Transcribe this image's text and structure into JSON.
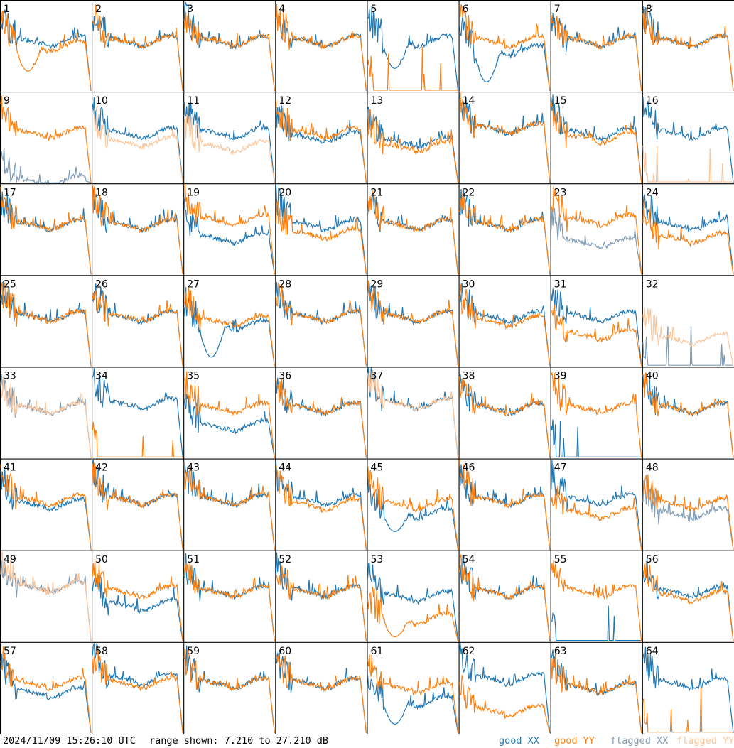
{
  "footer": {
    "timestamp": "2024/11/09 15:26:10 UTC",
    "range_text": "range shown: 7.210 to 27.210 dB"
  },
  "legend": [
    {
      "prefix": "good",
      "pol": "XX",
      "color": "#1f77b4"
    },
    {
      "prefix": "good",
      "pol": "YY",
      "color": "#ff7f0e"
    },
    {
      "prefix": "flagged",
      "pol": "XX",
      "color": "#7f9bb5"
    },
    {
      "prefix": "flagged",
      "pol": "YY",
      "color": "#fdc59a"
    }
  ],
  "chart_data": {
    "type": "line",
    "layout": "8x8 small multiples",
    "y_range_db": [
      7.21,
      27.21
    ],
    "series_names": [
      "good XX",
      "good YY",
      "flagged XX",
      "flagged YY"
    ],
    "panels": [
      {
        "id": "1",
        "xx": "good",
        "yy": "good",
        "xx_level": 0.55,
        "yy_level": 0.5,
        "yy_dip": 0.22,
        "note": "yy deep dip at start"
      },
      {
        "id": "2",
        "xx": "good",
        "yy": "good",
        "xx_level": 0.55,
        "yy_level": 0.55
      },
      {
        "id": "3",
        "xx": "good",
        "yy": "good",
        "xx_level": 0.55,
        "yy_level": 0.55
      },
      {
        "id": "4",
        "xx": "good",
        "yy": "good",
        "xx_level": 0.55,
        "yy_level": 0.55
      },
      {
        "id": "5",
        "xx": "good",
        "yy": "good",
        "xx_level": 0.55,
        "yy_level": 0.0,
        "xx_dip": 0.25,
        "note": "yy near bottom"
      },
      {
        "id": "6",
        "xx": "good",
        "yy": "good",
        "xx_level": 0.45,
        "yy_level": 0.55,
        "xx_dip": 0.1
      },
      {
        "id": "7",
        "xx": "good",
        "yy": "good",
        "xx_level": 0.55,
        "yy_level": 0.55
      },
      {
        "id": "8",
        "xx": "good",
        "yy": "good",
        "xx_level": 0.55,
        "yy_level": 0.55
      },
      {
        "id": "9",
        "xx": "flagged",
        "yy": "good",
        "xx_level": 0.02,
        "yy_level": 0.55,
        "note": "xx near bottom with spikes"
      },
      {
        "id": "10",
        "xx": "good",
        "yy": "flagged",
        "xx_level": 0.55,
        "yy_level": 0.45
      },
      {
        "id": "11",
        "xx": "good",
        "yy": "flagged",
        "xx_level": 0.55,
        "yy_level": 0.4
      },
      {
        "id": "12",
        "xx": "good",
        "yy": "good",
        "xx_level": 0.5,
        "yy_level": 0.55
      },
      {
        "id": "13",
        "xx": "good",
        "yy": "good",
        "xx_level": 0.45,
        "yy_level": 0.4
      },
      {
        "id": "14",
        "xx": "good",
        "yy": "good",
        "xx_level": 0.6,
        "yy_level": 0.6
      },
      {
        "id": "15",
        "xx": "good",
        "yy": "good",
        "xx_level": 0.55,
        "yy_level": 0.5
      },
      {
        "id": "16",
        "xx": "good",
        "yy": "flagged",
        "xx_level": 0.55,
        "yy_level": 0.0
      },
      {
        "id": "17",
        "xx": "good",
        "yy": "good",
        "xx_level": 0.55,
        "yy_level": 0.55
      },
      {
        "id": "18",
        "xx": "good",
        "yy": "good",
        "xx_level": 0.55,
        "yy_level": 0.55
      },
      {
        "id": "19",
        "xx": "good",
        "yy": "good",
        "xx_level": 0.4,
        "yy_level": 0.6
      },
      {
        "id": "20",
        "xx": "good",
        "yy": "good",
        "xx_level": 0.55,
        "yy_level": 0.45
      },
      {
        "id": "21",
        "xx": "good",
        "yy": "good",
        "xx_level": 0.55,
        "yy_level": 0.55
      },
      {
        "id": "22",
        "xx": "good",
        "yy": "good",
        "xx_level": 0.55,
        "yy_level": 0.55
      },
      {
        "id": "23",
        "xx": "flagged",
        "yy": "good",
        "xx_level": 0.35,
        "yy_level": 0.6,
        "note": "xx noisy"
      },
      {
        "id": "24",
        "xx": "good",
        "yy": "good",
        "xx_level": 0.55,
        "yy_level": 0.4
      },
      {
        "id": "25",
        "xx": "good",
        "yy": "good",
        "xx_level": 0.55,
        "yy_level": 0.55
      },
      {
        "id": "26",
        "xx": "good",
        "yy": "good",
        "xx_level": 0.55,
        "yy_level": 0.55
      },
      {
        "id": "27",
        "xx": "good",
        "yy": "good",
        "xx_level": 0.45,
        "yy_level": 0.5,
        "xx_dip": 0.1
      },
      {
        "id": "28",
        "xx": "good",
        "yy": "good",
        "xx_level": 0.55,
        "yy_level": 0.55
      },
      {
        "id": "29",
        "xx": "good",
        "yy": "good",
        "xx_level": 0.55,
        "yy_level": 0.55
      },
      {
        "id": "30",
        "xx": "good",
        "yy": "good",
        "xx_level": 0.55,
        "yy_level": 0.5
      },
      {
        "id": "31",
        "xx": "good",
        "yy": "good",
        "xx_level": 0.55,
        "yy_level": 0.35
      },
      {
        "id": "32",
        "xx": "flagged",
        "yy": "flagged",
        "xx_level": 0.0,
        "yy_level": 0.3
      },
      {
        "id": "33",
        "xx": "flagged",
        "yy": "flagged",
        "xx_level": 0.55,
        "yy_level": 0.55
      },
      {
        "id": "34",
        "xx": "good",
        "yy": "good",
        "xx_level": 0.6,
        "yy_level": 0.0,
        "note": "yy spikes at start"
      },
      {
        "id": "35",
        "xx": "good",
        "yy": "good",
        "xx_level": 0.35,
        "yy_level": 0.55
      },
      {
        "id": "36",
        "xx": "good",
        "yy": "good",
        "xx_level": 0.55,
        "yy_level": 0.55
      },
      {
        "id": "37",
        "xx": "good",
        "yy": "flagged",
        "xx_level": 0.6,
        "yy_level": 0.6
      },
      {
        "id": "38",
        "xx": "good",
        "yy": "good",
        "xx_level": 0.55,
        "yy_level": 0.55
      },
      {
        "id": "39",
        "xx": "good",
        "yy": "good",
        "xx_level": 0.0,
        "yy_level": 0.55
      },
      {
        "id": "40",
        "xx": "good",
        "yy": "good",
        "xx_level": 0.55,
        "yy_level": 0.55
      },
      {
        "id": "41",
        "xx": "good",
        "yy": "good",
        "xx_level": 0.5,
        "yy_level": 0.55
      },
      {
        "id": "42",
        "xx": "good",
        "yy": "good",
        "xx_level": 0.55,
        "yy_level": 0.55
      },
      {
        "id": "43",
        "xx": "good",
        "yy": "good",
        "xx_level": 0.55,
        "yy_level": 0.55
      },
      {
        "id": "44",
        "xx": "good",
        "yy": "good",
        "xx_level": 0.55,
        "yy_level": 0.5
      },
      {
        "id": "45",
        "xx": "good",
        "yy": "good",
        "xx_level": 0.4,
        "yy_level": 0.5,
        "xx_dip": 0.2
      },
      {
        "id": "46",
        "xx": "good",
        "yy": "good",
        "xx_level": 0.55,
        "yy_level": 0.55
      },
      {
        "id": "47",
        "xx": "good",
        "yy": "good",
        "xx_level": 0.55,
        "yy_level": 0.4
      },
      {
        "id": "48",
        "xx": "flagged",
        "yy": "good",
        "xx_level": 0.4,
        "yy_level": 0.5
      },
      {
        "id": "49",
        "xx": "flagged",
        "yy": "flagged",
        "xx_level": 0.6,
        "yy_level": 0.6
      },
      {
        "id": "50",
        "xx": "good",
        "yy": "good",
        "xx_level": 0.4,
        "yy_level": 0.55
      },
      {
        "id": "51",
        "xx": "good",
        "yy": "good",
        "xx_level": 0.55,
        "yy_level": 0.55
      },
      {
        "id": "52",
        "xx": "good",
        "yy": "good",
        "xx_level": 0.55,
        "yy_level": 0.55
      },
      {
        "id": "53",
        "xx": "good",
        "yy": "good",
        "xx_level": 0.5,
        "yy_level": 0.25,
        "yy_dip": 0.05
      },
      {
        "id": "54",
        "xx": "good",
        "yy": "good",
        "xx_level": 0.55,
        "yy_level": 0.55
      },
      {
        "id": "55",
        "xx": "good",
        "yy": "good",
        "xx_level": 0.0,
        "yy_level": 0.55
      },
      {
        "id": "56",
        "xx": "good",
        "yy": "good",
        "xx_level": 0.55,
        "yy_level": 0.5
      },
      {
        "id": "57",
        "xx": "good",
        "yy": "good",
        "xx_level": 0.45,
        "yy_level": 0.55
      },
      {
        "id": "58",
        "xx": "good",
        "yy": "good",
        "xx_level": 0.6,
        "yy_level": 0.55
      },
      {
        "id": "59",
        "xx": "good",
        "yy": "good",
        "xx_level": 0.55,
        "yy_level": 0.55
      },
      {
        "id": "60",
        "xx": "good",
        "yy": "good",
        "xx_level": 0.55,
        "yy_level": 0.55
      },
      {
        "id": "61",
        "xx": "good",
        "yy": "good",
        "xx_level": 0.35,
        "yy_level": 0.5,
        "xx_dip": 0.1
      },
      {
        "id": "62",
        "xx": "good",
        "yy": "good",
        "xx_level": 0.6,
        "yy_level": 0.25
      },
      {
        "id": "63",
        "xx": "good",
        "yy": "good",
        "xx_level": 0.5,
        "yy_level": 0.5
      },
      {
        "id": "64",
        "xx": "good",
        "yy": "good",
        "xx_level": 0.55,
        "yy_level": 0.0
      }
    ]
  }
}
